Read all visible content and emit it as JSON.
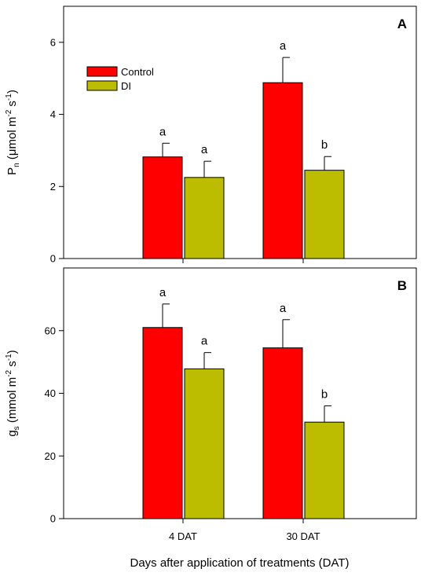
{
  "colors": {
    "control": "#ff0000",
    "di": "#bcbc00",
    "stroke": "#000000"
  },
  "chart_data": [
    {
      "type": "bar",
      "panel_label": "A",
      "ylabel_main": "P",
      "ylabel_sub": "n",
      "ylabel_unit_1": " (μmol m",
      "ylabel_exp_1": "-2",
      "ylabel_unit_2": " s",
      "ylabel_exp_2": "-1",
      "ylabel_unit_3": ")",
      "ylim": [
        0,
        7
      ],
      "yticks": [
        0,
        2,
        4,
        6
      ],
      "categories": [
        "4 DAT",
        "30 DAT"
      ],
      "series": [
        {
          "name": "Control",
          "values": [
            2.82,
            4.88
          ],
          "errors": [
            0.38,
            0.7
          ],
          "letters": [
            "a",
            "a"
          ]
        },
        {
          "name": "DI",
          "values": [
            2.25,
            2.45
          ],
          "errors": [
            0.45,
            0.38
          ],
          "letters": [
            "a",
            "b"
          ]
        }
      ],
      "legend": [
        "Control",
        "DI"
      ],
      "legend_position": "top-left"
    },
    {
      "type": "bar",
      "panel_label": "B",
      "ylabel_main": "g",
      "ylabel_sub": "s",
      "ylabel_unit_1": " (mmol m",
      "ylabel_exp_1": "-2",
      "ylabel_unit_2": " s",
      "ylabel_exp_2": "-1",
      "ylabel_unit_3": ")",
      "ylim": [
        0,
        80
      ],
      "yticks": [
        0,
        20,
        40,
        60
      ],
      "categories": [
        "4 DAT",
        "30 DAT"
      ],
      "series": [
        {
          "name": "Control",
          "values": [
            61,
            54.5
          ],
          "errors": [
            7.5,
            9
          ],
          "letters": [
            "a",
            "a"
          ]
        },
        {
          "name": "DI",
          "values": [
            47.8,
            30.8
          ],
          "errors": [
            5.2,
            5.2
          ],
          "letters": [
            "a",
            "b"
          ]
        }
      ]
    }
  ],
  "xlabel": "Days after application of treatments (DAT)"
}
